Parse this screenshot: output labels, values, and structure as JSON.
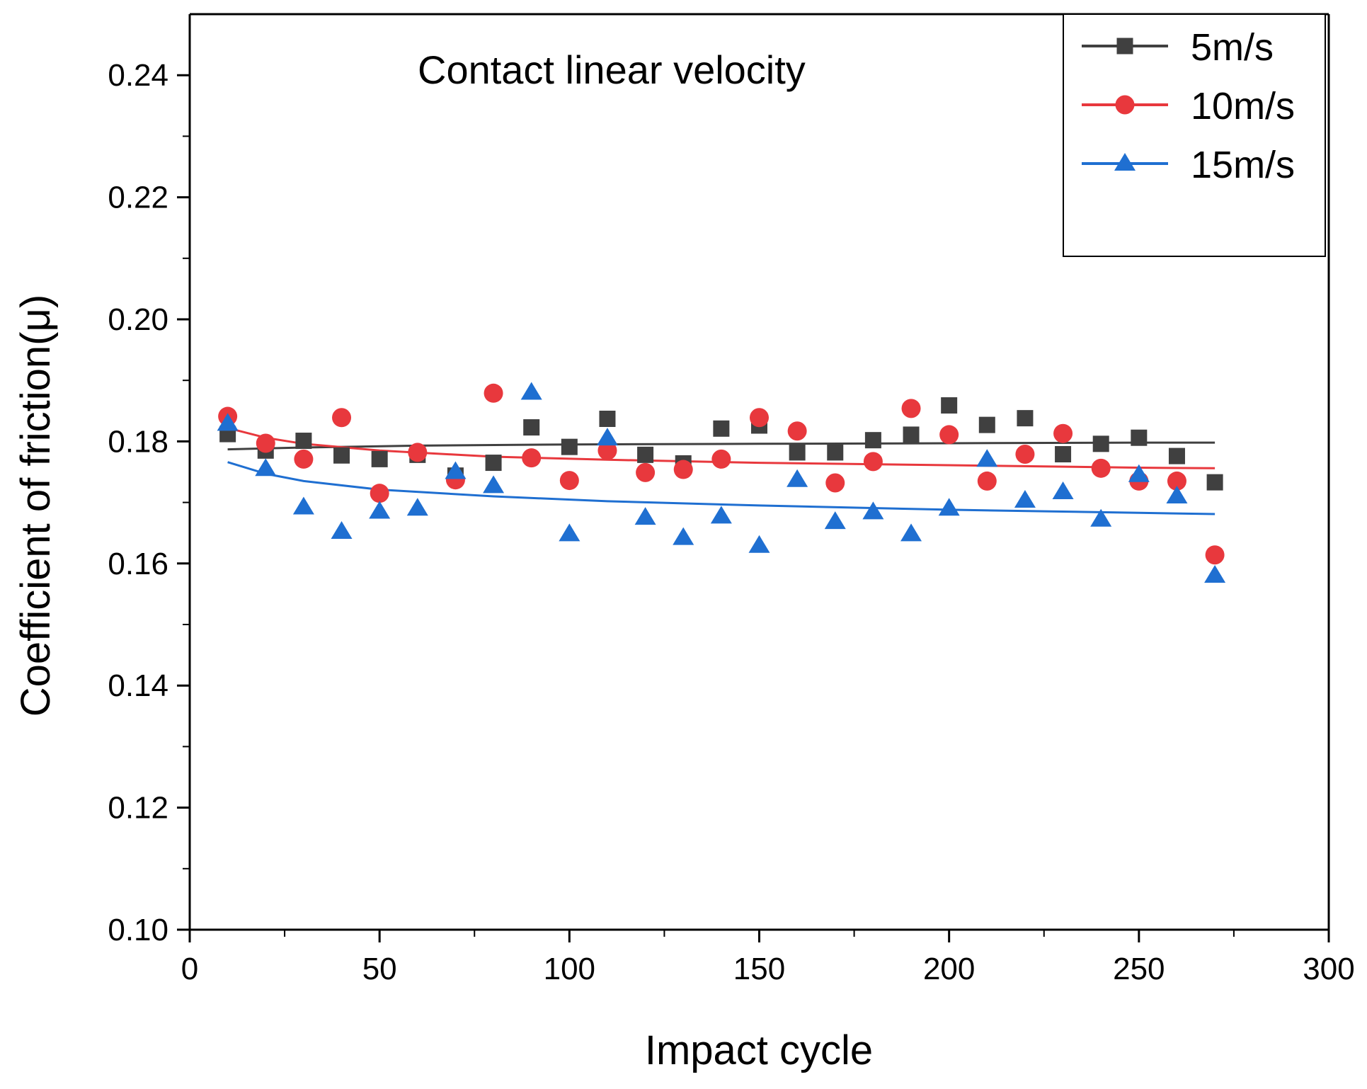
{
  "chart_data": {
    "type": "scatter",
    "title": "",
    "annotation": "Contact linear velocity",
    "xlabel": "Impact cycle",
    "ylabel": "Coefficient of friction(μ)",
    "xlim": [
      0,
      300
    ],
    "ylim": [
      0.1,
      0.25
    ],
    "x_ticks": [
      0,
      50,
      100,
      150,
      200,
      250,
      300
    ],
    "x_tick_labels": [
      "0",
      "50",
      "100",
      "150",
      "200",
      "250",
      "300"
    ],
    "y_ticks": [
      0.1,
      0.12,
      0.14,
      0.16,
      0.18,
      0.2,
      0.22,
      0.24
    ],
    "y_tick_labels": [
      "0.10",
      "0.12",
      "0.14",
      "0.16",
      "0.18",
      "0.20",
      "0.22",
      "0.24"
    ],
    "grid": false,
    "legend_position": "top-right",
    "x": [
      10,
      20,
      30,
      40,
      50,
      60,
      70,
      80,
      90,
      100,
      110,
      120,
      130,
      140,
      150,
      160,
      170,
      180,
      190,
      200,
      210,
      220,
      230,
      240,
      250,
      260,
      270
    ],
    "series": [
      {
        "name": "5m/s",
        "color": "#404040",
        "marker": "square",
        "values": [
          0.1812,
          0.1785,
          0.1801,
          0.1777,
          0.1771,
          0.1778,
          0.1744,
          0.1765,
          0.1823,
          0.1791,
          0.1837,
          0.1778,
          0.1764,
          0.1821,
          0.1826,
          0.1782,
          0.1782,
          0.1802,
          0.1811,
          0.1859,
          0.1827,
          0.1838,
          0.1779,
          0.1796,
          0.1806,
          0.1776,
          0.1733
        ],
        "fit": {
          "x": [
            10,
            30,
            60,
            100,
            150,
            200,
            250,
            270
          ],
          "values": [
            0.1787,
            0.179,
            0.1793,
            0.1795,
            0.1796,
            0.1797,
            0.1798,
            0.1798
          ]
        }
      },
      {
        "name": "10m/s",
        "color": "#e8383d",
        "marker": "circle",
        "values": [
          0.1841,
          0.1797,
          0.1771,
          0.1839,
          0.1715,
          0.1782,
          0.1737,
          0.1879,
          0.1773,
          0.1736,
          0.1785,
          0.1749,
          0.1754,
          0.1771,
          0.1839,
          0.1817,
          0.1732,
          0.1767,
          0.1854,
          0.1811,
          0.1735,
          0.1779,
          0.1813,
          0.1756,
          0.1735,
          0.1735,
          0.1614
        ],
        "fit": {
          "x": [
            10,
            20,
            30,
            50,
            80,
            110,
            150,
            200,
            250,
            270
          ],
          "values": [
            0.1822,
            0.1806,
            0.1796,
            0.1785,
            0.1775,
            0.177,
            0.1765,
            0.1761,
            0.1757,
            0.1756
          ]
        }
      },
      {
        "name": "15m/s",
        "color": "#1f6fd1",
        "marker": "triangle",
        "values": [
          0.1829,
          0.1755,
          0.1692,
          0.1652,
          0.1685,
          0.169,
          0.175,
          0.1727,
          0.188,
          0.1648,
          0.1805,
          0.1675,
          0.1642,
          0.1677,
          0.1629,
          0.1737,
          0.1668,
          0.1684,
          0.1648,
          0.169,
          0.177,
          0.1703,
          0.1717,
          0.1672,
          0.1745,
          0.171,
          0.158
        ],
        "fit": {
          "x": [
            10,
            20,
            30,
            50,
            80,
            110,
            150,
            200,
            250,
            270
          ],
          "values": [
            0.1766,
            0.1747,
            0.1735,
            0.1721,
            0.171,
            0.1702,
            0.1695,
            0.1688,
            0.1683,
            0.1681
          ]
        }
      }
    ]
  }
}
